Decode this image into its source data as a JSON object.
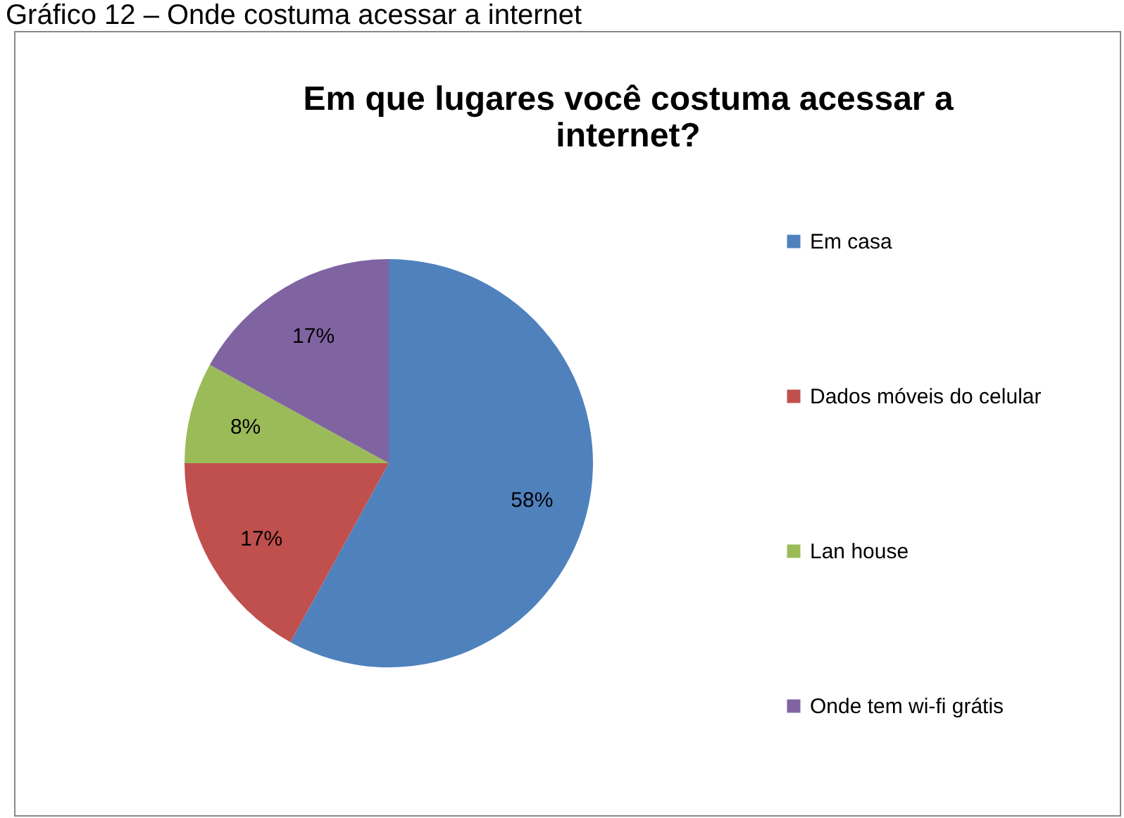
{
  "chart_data": {
    "type": "pie",
    "title": "Em que lugares você costuma acessar a internet?",
    "annotations": [
      "Gráfico 12 – Onde costuma acessar a internet"
    ],
    "categories": [
      "Em casa",
      "Dados móveis do celular",
      "Lan house",
      "Onde tem wi-fi grátis"
    ],
    "values": [
      58,
      17,
      8,
      17
    ],
    "colors": [
      "#4f81bd",
      "#c0504d",
      "#9bbb59",
      "#8064a2"
    ],
    "value_labels": [
      "58%",
      "17%",
      "8%",
      "17%"
    ],
    "legend": "right"
  }
}
